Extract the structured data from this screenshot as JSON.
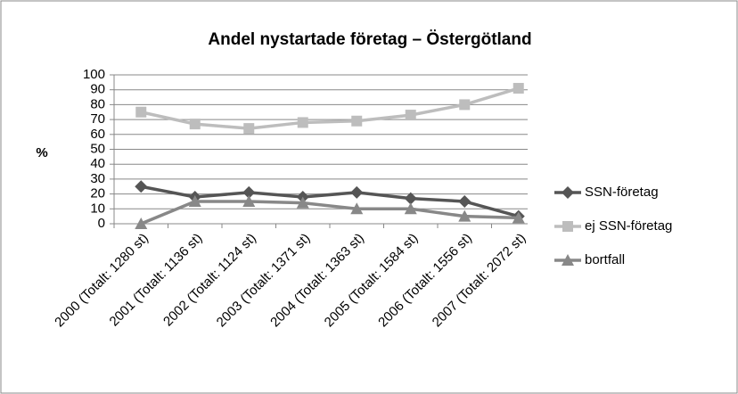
{
  "chart_data": {
    "type": "line",
    "title": "Andel nystartade företag –  Östergötland",
    "y_label": "%",
    "categories": [
      "2000 (Totalt: 1280 st)",
      "2001 (Totalt: 1136 st)",
      "2002 (Totalt: 1124 st)",
      "2003 (Totalt: 1371 st)",
      "2004 (Totalt: 1363 st)",
      "2005 (Totalt: 1584 st)",
      "2006 (Totalt: 1556 st)",
      "2007 (Totalt: 2072 st)"
    ],
    "series": [
      {
        "name": "SSN-företag",
        "color": "#555555",
        "marker": "diamond",
        "values": [
          25,
          18,
          21,
          18,
          21,
          17,
          15,
          5
        ]
      },
      {
        "name": "ej SSN-företag",
        "color": "#bdbdbd",
        "marker": "square",
        "values": [
          75,
          67,
          64,
          68,
          69,
          73,
          80,
          91
        ]
      },
      {
        "name": "bortfall",
        "color": "#888888",
        "marker": "triangle",
        "values": [
          0,
          15,
          15,
          14,
          10,
          10,
          5,
          4
        ]
      }
    ],
    "ylim": [
      0,
      100
    ],
    "yticks": [
      0,
      10,
      20,
      30,
      40,
      50,
      60,
      70,
      80,
      90,
      100
    ],
    "grid": true,
    "legend": "right"
  }
}
